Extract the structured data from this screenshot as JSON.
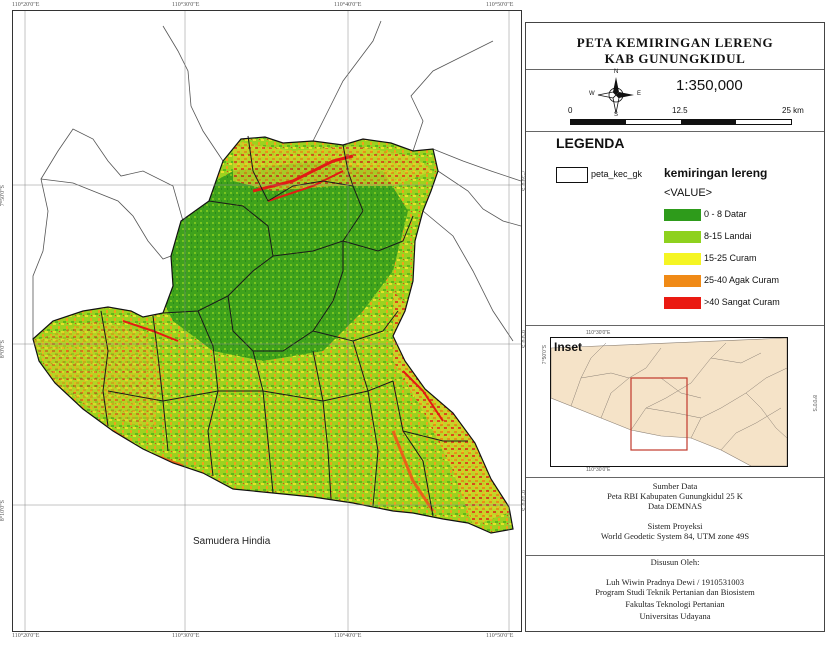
{
  "map": {
    "label_sea": "Samudera Hindia",
    "grid_labels": {
      "top": [
        "110°20'0\"E",
        "110°30'0\"E",
        "110°40'0\"E",
        "110°50'0\"E"
      ],
      "bottom": [
        "110°20'0\"E",
        "110°30'0\"E",
        "110°40'0\"E",
        "110°50'0\"E"
      ],
      "left": [
        "7°50'0\"S",
        "8°0'0\"S",
        "8°10'0\"S"
      ],
      "right": [
        "7°50'0\"S",
        "8°0'0\"S",
        "8°10'0\"S"
      ]
    }
  },
  "panel": {
    "title_line1": "PETA KEMIRINGAN LERENG",
    "title_line2": "KAB GUNUNGKIDUL",
    "scale_text": "1:350,000",
    "scalebar_labels": [
      "0",
      "12.5",
      "25 km"
    ],
    "compass": {
      "n": "N",
      "s": "S",
      "e": "E",
      "w": "W"
    },
    "legend": {
      "title": "LEGENDA",
      "boundary_label": "peta_kec_gk",
      "group_title": "kemiringan lereng",
      "value_header": "<VALUE>",
      "items": [
        {
          "label": "0 - 8 Datar",
          "color": "#2e9b1b"
        },
        {
          "label": "8-15 Landai",
          "color": "#8ed11e"
        },
        {
          "label": "15-25 Curam",
          "color": "#f5f523"
        },
        {
          "label": "25-40 Agak Curam",
          "color": "#f08a16"
        },
        {
          "label": ">40 Sangat Curam",
          "color": "#ea1a12"
        }
      ]
    },
    "inset": {
      "label": "Inset",
      "tick_top": "110°30'0\"E",
      "tick_bottom": "110°30'0\"E",
      "tick_left": "7°50'0\"S",
      "tick_right": "8°0'0\"S"
    },
    "source": {
      "heading": "Sumber Data",
      "line1": "Peta RBI Kabupaten Gunungkidul 25 K",
      "line2": "Data DEMNAS"
    },
    "projection": {
      "heading": "Sistem Proyeksi",
      "line1": "World Geodetic System 84, UTM zone 49S"
    },
    "author": {
      "heading": "Disusun Oleh:",
      "line1": "Luh Wiwin Pradnya Dewi / 1910531003",
      "line2": "Program Studi Teknik Pertanian dan Biosistem",
      "line3": "Fakultas Teknologi Pertanian",
      "line4": "Universitas Udayana"
    }
  },
  "colors": {
    "land_inset": "#f5e3c8",
    "box_highlight": "#c0392b"
  }
}
